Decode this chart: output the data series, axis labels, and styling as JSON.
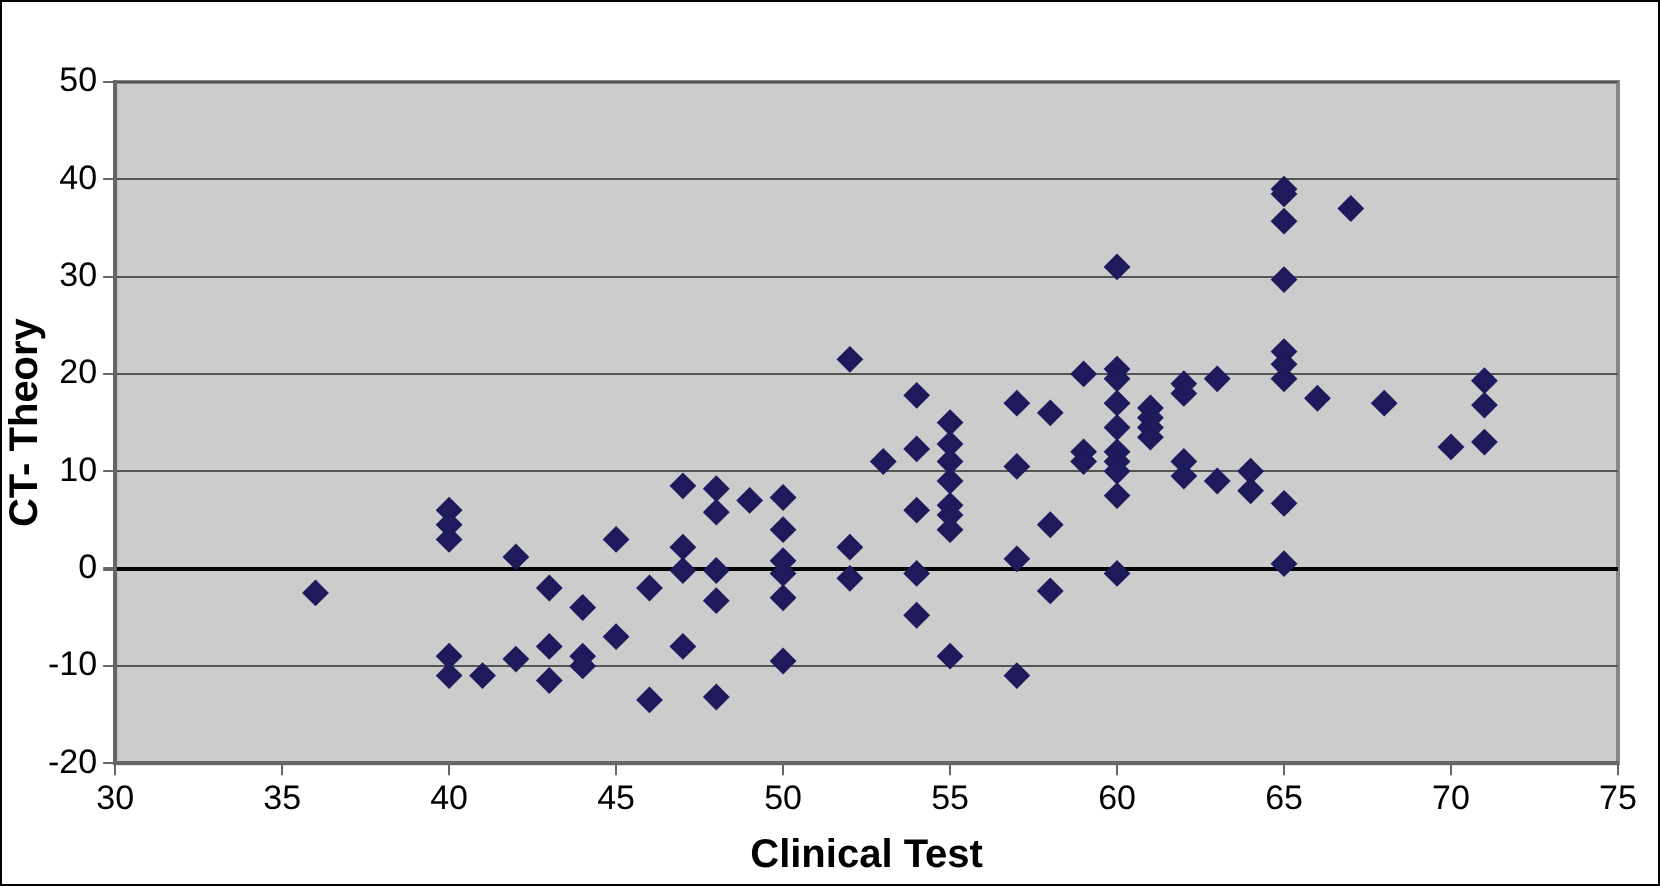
{
  "chart_data": {
    "type": "scatter",
    "xlabel": "Clinical Test",
    "ylabel": "CT- Theory",
    "xlim": [
      30,
      75
    ],
    "xticks": [
      30,
      35,
      40,
      45,
      50,
      55,
      60,
      65,
      70,
      75
    ],
    "ylim": [
      -20,
      50
    ],
    "yticks": [
      -20,
      -10,
      0,
      10,
      20,
      30,
      40,
      50
    ],
    "grid": "y",
    "legend": false,
    "marker": "diamond",
    "series": [
      {
        "color": "#1f1a5c",
        "x": [
          36,
          40,
          40,
          40,
          40,
          40,
          41,
          42,
          42,
          43,
          43,
          43,
          44,
          44,
          44,
          45,
          45,
          46,
          46,
          47,
          47,
          47,
          47,
          48,
          48,
          48,
          48,
          48,
          49,
          50,
          50,
          50,
          50,
          50,
          50,
          52,
          52,
          52,
          53,
          54,
          54,
          54,
          54,
          54,
          55,
          55,
          55,
          55,
          55,
          55,
          55,
          55,
          57,
          57,
          57,
          57,
          58,
          58,
          58,
          59,
          59,
          59,
          60,
          60,
          60,
          60,
          60,
          60,
          60,
          60,
          60,
          60,
          61,
          61,
          61,
          61,
          62,
          62,
          62,
          62,
          63,
          63,
          64,
          64,
          65,
          65,
          65,
          65,
          65,
          65,
          65,
          65,
          65,
          66,
          67,
          68,
          70,
          71,
          71,
          71
        ],
        "values": [
          -2.5,
          6,
          4.5,
          3,
          -9,
          -11,
          -11,
          1.2,
          -9.3,
          -2,
          -8,
          -11.5,
          -4,
          -9,
          -10,
          3,
          -7,
          -2,
          -13.5,
          8.5,
          2.2,
          -0.2,
          -8,
          8.2,
          5.8,
          -0.2,
          -3.3,
          -13.2,
          7,
          7.3,
          4,
          0.8,
          -0.5,
          -3,
          -9.5,
          21.5,
          2.2,
          -1,
          11,
          17.8,
          12.3,
          6,
          -0.5,
          -4.8,
          15,
          12.8,
          11,
          9,
          6.5,
          5.5,
          4,
          -9,
          17,
          10.5,
          1,
          -11,
          16,
          4.5,
          -2.3,
          20,
          12,
          11,
          31,
          20.5,
          19.5,
          17,
          14.5,
          12,
          11,
          10,
          7.5,
          -0.5,
          16.5,
          15.5,
          14.5,
          13.5,
          19,
          18,
          11,
          9.5,
          19.5,
          9,
          10,
          8,
          39,
          38.5,
          35.7,
          29.7,
          22.3,
          21,
          19.5,
          6.7,
          0.5,
          17.5,
          37,
          17,
          12.5,
          19.3,
          16.8,
          13
        ]
      }
    ]
  }
}
